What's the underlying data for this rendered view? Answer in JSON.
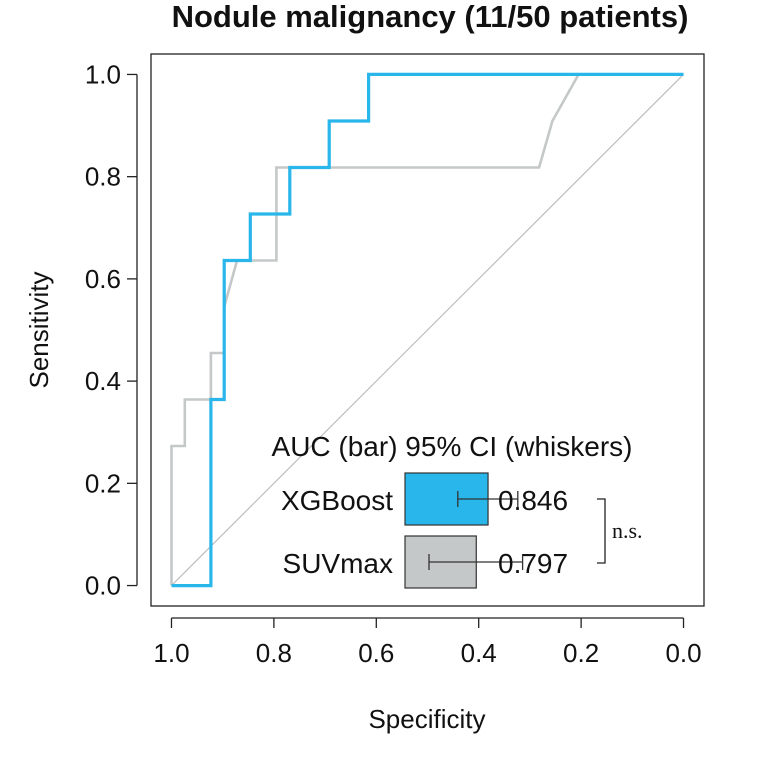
{
  "chart_data": {
    "type": "line",
    "title": "Nodule malignancy (11/50 patients)",
    "xlabel": "Specificity",
    "ylabel": "Sensitivity",
    "xlim": [
      1.04,
      -0.04
    ],
    "ylim": [
      -0.04,
      1.04
    ],
    "x_reversed": true,
    "xticks": [
      1.0,
      0.8,
      0.6,
      0.4,
      0.2,
      0.0
    ],
    "xtick_labels": [
      "1.0",
      "0.8",
      "0.6",
      "0.4",
      "0.2",
      "0.0"
    ],
    "yticks": [
      0.0,
      0.2,
      0.4,
      0.6,
      0.8,
      1.0
    ],
    "ytick_labels": [
      "0.0",
      "0.2",
      "0.4",
      "0.6",
      "0.8",
      "1.0"
    ],
    "grid": false,
    "series": [
      {
        "name": "SUVmax",
        "color": "#c4c8c8",
        "points": [
          [
            1.0,
            0.0
          ],
          [
            1.0,
            0.273
          ],
          [
            0.974,
            0.273
          ],
          [
            0.974,
            0.364
          ],
          [
            0.923,
            0.364
          ],
          [
            0.923,
            0.455
          ],
          [
            0.897,
            0.455
          ],
          [
            0.897,
            0.545
          ],
          [
            0.872,
            0.636
          ],
          [
            0.795,
            0.636
          ],
          [
            0.795,
            0.818
          ],
          [
            0.282,
            0.818
          ],
          [
            0.256,
            0.909
          ],
          [
            0.205,
            1.0
          ],
          [
            0.0,
            1.0
          ]
        ]
      },
      {
        "name": "XGBoost",
        "color": "#29b6ea",
        "points": [
          [
            1.0,
            0.0
          ],
          [
            0.923,
            0.0
          ],
          [
            0.923,
            0.364
          ],
          [
            0.897,
            0.364
          ],
          [
            0.897,
            0.636
          ],
          [
            0.846,
            0.636
          ],
          [
            0.846,
            0.727
          ],
          [
            0.769,
            0.727
          ],
          [
            0.769,
            0.818
          ],
          [
            0.692,
            0.818
          ],
          [
            0.692,
            0.909
          ],
          [
            0.615,
            0.909
          ],
          [
            0.615,
            1.0
          ],
          [
            0.0,
            1.0
          ]
        ]
      }
    ],
    "reference_line": {
      "from": [
        1.0,
        0.0
      ],
      "to": [
        0.0,
        1.0
      ],
      "color": "#bdbdbd"
    },
    "inset": {
      "title": "AUC (bar) 95% CI (whiskers)",
      "scale_range": [
        0.0,
        1.0
      ],
      "bars": [
        {
          "name": "XGBoost",
          "auc": 0.846,
          "auc_label": "0.846",
          "ci": [
            0.72,
            0.97
          ],
          "color": "#29b6ea"
        },
        {
          "name": "SUVmax",
          "auc": 0.797,
          "auc_label": "0.797",
          "ci": [
            0.6,
            0.99
          ],
          "color": "#c4c8c8"
        }
      ],
      "comparison_label": "n.s."
    }
  }
}
